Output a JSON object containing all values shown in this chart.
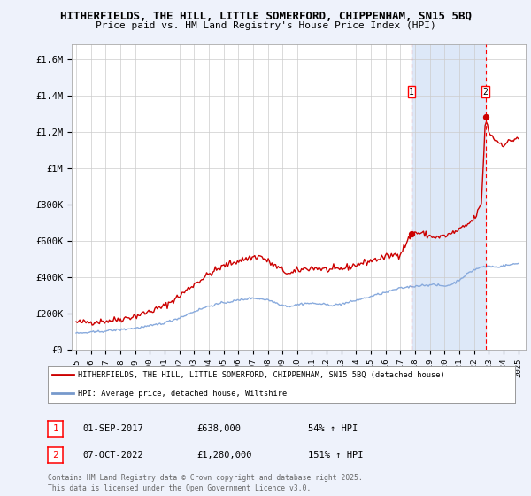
{
  "title_line1": "HITHERFIELDS, THE HILL, LITTLE SOMERFORD, CHIPPENHAM, SN15 5BQ",
  "title_line2": "Price paid vs. HM Land Registry's House Price Index (HPI)",
  "background_color": "#eef2fb",
  "plot_bg_color": "#ffffff",
  "grid_color": "#cccccc",
  "ylabel_ticks": [
    "£0",
    "£200K",
    "£400K",
    "£600K",
    "£800K",
    "£1M",
    "£1.2M",
    "£1.4M",
    "£1.6M"
  ],
  "ytick_values": [
    0,
    200000,
    400000,
    600000,
    800000,
    1000000,
    1200000,
    1400000,
    1600000
  ],
  "ylim": [
    0,
    1680000
  ],
  "marker1_date": 2017.75,
  "marker1_label": "1",
  "marker1_price": 638000,
  "marker2_date": 2022.77,
  "marker2_label": "2",
  "marker2_price": 1280000,
  "legend_line1": "HITHERFIELDS, THE HILL, LITTLE SOMERFORD, CHIPPENHAM, SN15 5BQ (detached house)",
  "legend_line2": "HPI: Average price, detached house, Wiltshire",
  "legend_color1": "#cc0000",
  "legend_color2": "#7799cc",
  "annotation1_date": "01-SEP-2017",
  "annotation1_price": "£638,000",
  "annotation1_pct": "54% ↑ HPI",
  "annotation2_date": "07-OCT-2022",
  "annotation2_price": "£1,280,000",
  "annotation2_pct": "151% ↑ HPI",
  "footer": "Contains HM Land Registry data © Crown copyright and database right 2025.\nThis data is licensed under the Open Government Licence v3.0.",
  "property_line_color": "#cc0000",
  "hpi_line_color": "#88aadd",
  "shaded_region_color": "#dde8f8"
}
